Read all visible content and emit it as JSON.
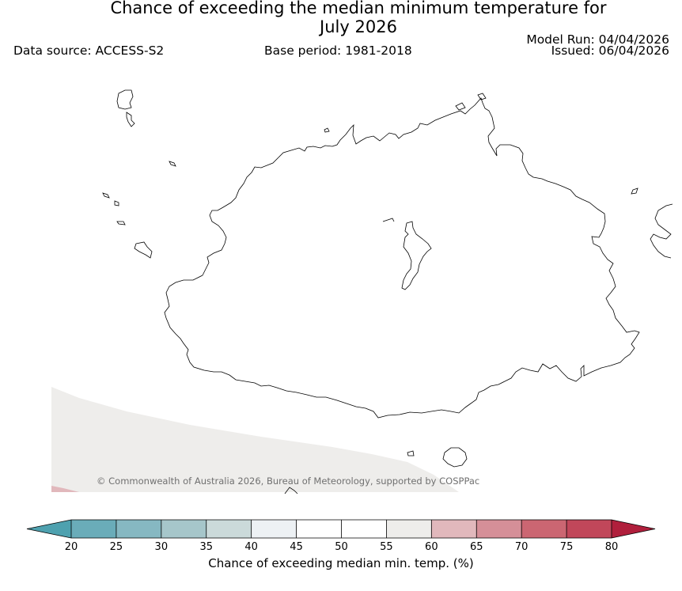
{
  "header": {
    "title_line1": "Chance of exceeding the median minimum temperature for",
    "title_line2": "July 2026",
    "data_source": "Data source: ACCESS-S2",
    "base_period": "Base period: 1981-2018",
    "model_run": "Model Run: 04/04/2026",
    "issued": "Issued: 06/04/2026"
  },
  "map": {
    "copyright": "© Commonwealth of Australia 2026, Bureau of Meteorology, supported by COSPPac",
    "region_colors": {
      "band_50_55": "#eeedeb",
      "band_60_65": "#e1b8bc"
    },
    "coast_color": "#000000"
  },
  "colorbar": {
    "label": "Chance of exceeding median min. temp. (%)",
    "ticks": [
      "20",
      "25",
      "30",
      "35",
      "40",
      "45",
      "50",
      "55",
      "60",
      "65",
      "70",
      "75",
      "80"
    ],
    "under_color": "#4ea1af",
    "over_color": "#b01f3c",
    "colors": [
      "#6aacb9",
      "#86b8c2",
      "#a6c6ca",
      "#cbdada",
      "#edf1f4",
      "#ffffff",
      "#ffffff",
      "#eeedeb",
      "#e1b8bc",
      "#d58f98",
      "#cb6672",
      "#c1475a"
    ]
  }
}
